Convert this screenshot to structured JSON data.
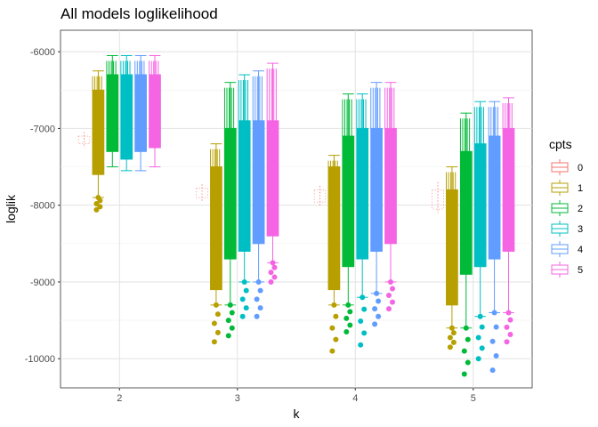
{
  "chart_data": {
    "type": "boxplot",
    "title": "All models loglikelihood",
    "xlabel": "k",
    "ylabel": "loglik",
    "categories": [
      "2",
      "3",
      "4",
      "5"
    ],
    "yticks": [
      -6000,
      -7000,
      -8000,
      -9000,
      -10000
    ],
    "ylim": [
      -10380,
      -5720
    ],
    "grid": true,
    "legend": {
      "title": "cpts",
      "position": "right",
      "entries": [
        "0",
        "1",
        "2",
        "3",
        "4",
        "5"
      ]
    },
    "series": [
      {
        "name": "0",
        "color": "#F8766D",
        "groups": [
          {
            "q1": -7200,
            "q3": -7100,
            "whisker_low": -7250,
            "whisker_high": -7050
          },
          {
            "q1": -7900,
            "q3": -7780,
            "whisker_low": -7950,
            "whisker_high": -7730
          },
          {
            "q1": -7960,
            "q3": -7800,
            "whisker_low": -8000,
            "whisker_high": -7750
          },
          {
            "q1": -8050,
            "q3": -7800,
            "whisker_low": -8100,
            "whisker_high": -7700
          }
        ]
      },
      {
        "name": "1",
        "color": "#B79F00",
        "groups": [
          {
            "q1": -7600,
            "q3": -6500,
            "whisker_low": -7900,
            "whisker_high": -6250,
            "out_low": -8060
          },
          {
            "q1": -9100,
            "q3": -7500,
            "whisker_low": -9300,
            "whisker_high": -7200,
            "out_low": -9780
          },
          {
            "q1": -9100,
            "q3": -7500,
            "whisker_low": -9300,
            "whisker_high": -7350,
            "out_low": -9900
          },
          {
            "q1": -9300,
            "q3": -7800,
            "whisker_low": -9600,
            "whisker_high": -7500,
            "out_low": -9850
          }
        ]
      },
      {
        "name": "2",
        "color": "#00BA38",
        "groups": [
          {
            "q1": -7300,
            "q3": -6300,
            "whisker_low": -7500,
            "whisker_high": -6050
          },
          {
            "q1": -8700,
            "q3": -7000,
            "whisker_low": -9300,
            "whisker_high": -6400,
            "out_low": -9700
          },
          {
            "q1": -8800,
            "q3": -7100,
            "whisker_low": -9300,
            "whisker_high": -6550,
            "out_low": -9650
          },
          {
            "q1": -8900,
            "q3": -7300,
            "whisker_low": -9600,
            "whisker_high": -6800,
            "out_low": -10200
          }
        ]
      },
      {
        "name": "3",
        "color": "#00BFC4",
        "groups": [
          {
            "q1": -7400,
            "q3": -6300,
            "whisker_low": -7550,
            "whisker_high": -6050
          },
          {
            "q1": -8600,
            "q3": -6900,
            "whisker_low": -9000,
            "whisker_high": -6300,
            "out_low": -9450
          },
          {
            "q1": -8700,
            "q3": -7000,
            "whisker_low": -9200,
            "whisker_high": -6550,
            "out_low": -9820
          },
          {
            "q1": -8800,
            "q3": -7200,
            "whisker_low": -9450,
            "whisker_high": -6650,
            "out_low": -10000
          }
        ]
      },
      {
        "name": "4",
        "color": "#619CFF",
        "groups": [
          {
            "q1": -7300,
            "q3": -6300,
            "whisker_low": -7550,
            "whisker_high": -6050
          },
          {
            "q1": -8500,
            "q3": -6900,
            "whisker_low": -9000,
            "whisker_high": -6250,
            "out_low": -9450
          },
          {
            "q1": -8600,
            "q3": -7000,
            "whisker_low": -9150,
            "whisker_high": -6400,
            "out_low": -9550
          },
          {
            "q1": -8700,
            "q3": -7100,
            "whisker_low": -9400,
            "whisker_high": -6650,
            "out_low": -10150
          }
        ]
      },
      {
        "name": "5",
        "color": "#F564E3",
        "groups": [
          {
            "q1": -7250,
            "q3": -6300,
            "whisker_low": -7500,
            "whisker_high": -6050
          },
          {
            "q1": -8400,
            "q3": -6900,
            "whisker_low": -8750,
            "whisker_high": -6150,
            "out_low": -9000
          },
          {
            "q1": -8500,
            "q3": -7000,
            "whisker_low": -9000,
            "whisker_high": -6400,
            "out_low": -9350
          },
          {
            "q1": -8600,
            "q3": -7000,
            "whisker_low": -9400,
            "whisker_high": -6600,
            "out_low": -9780
          }
        ]
      }
    ]
  }
}
